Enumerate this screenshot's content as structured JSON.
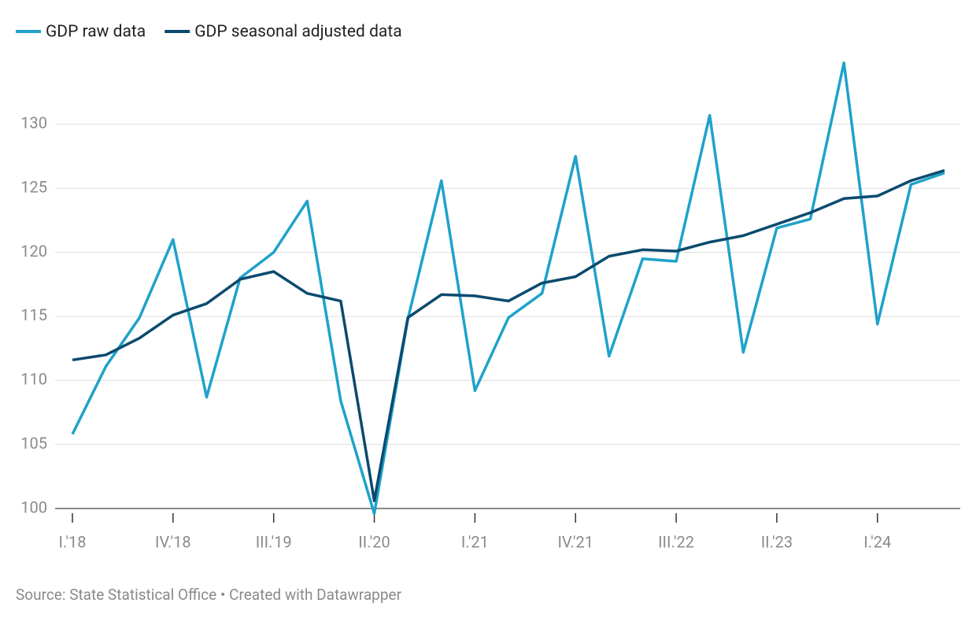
{
  "chart_data": {
    "type": "line",
    "categories": [
      "I.'18",
      null,
      null,
      "IV.'18",
      null,
      null,
      "III.'19",
      null,
      null,
      "II.'20",
      null,
      null,
      "I.'21",
      null,
      null,
      "IV.'21",
      null,
      null,
      "III.'22",
      null,
      null,
      "II.'23",
      null,
      null,
      "I.'24",
      null,
      null
    ],
    "series": [
      {
        "name": "GDP raw data",
        "color": "#1fa2ca",
        "values": [
          105.8,
          111.1,
          114.9,
          121.0,
          108.7,
          118.0,
          120.0,
          124.0,
          108.4,
          99.6,
          114.8,
          125.6,
          109.2,
          114.9,
          116.8,
          127.5,
          111.9,
          119.5,
          119.3,
          130.7,
          112.2,
          121.9,
          122.6,
          134.8,
          114.4,
          125.3,
          126.2
        ]
      },
      {
        "name": "GDP seasonal adjusted data",
        "color": "#0b4a6e",
        "values": [
          111.6,
          112.0,
          113.3,
          115.1,
          116.0,
          117.9,
          118.5,
          116.8,
          116.2,
          100.6,
          114.9,
          116.7,
          116.6,
          116.2,
          117.6,
          118.1,
          119.7,
          120.2,
          120.1,
          120.8,
          121.3,
          122.2,
          123.1,
          124.2,
          124.4,
          125.6,
          126.4
        ]
      }
    ],
    "ylim": [
      100,
      135
    ],
    "yticks": [
      100,
      105,
      110,
      115,
      120,
      125,
      130
    ],
    "grid": true,
    "legend": "top-left",
    "source": "Source: State Statistical Office • Created with Datawrapper"
  }
}
